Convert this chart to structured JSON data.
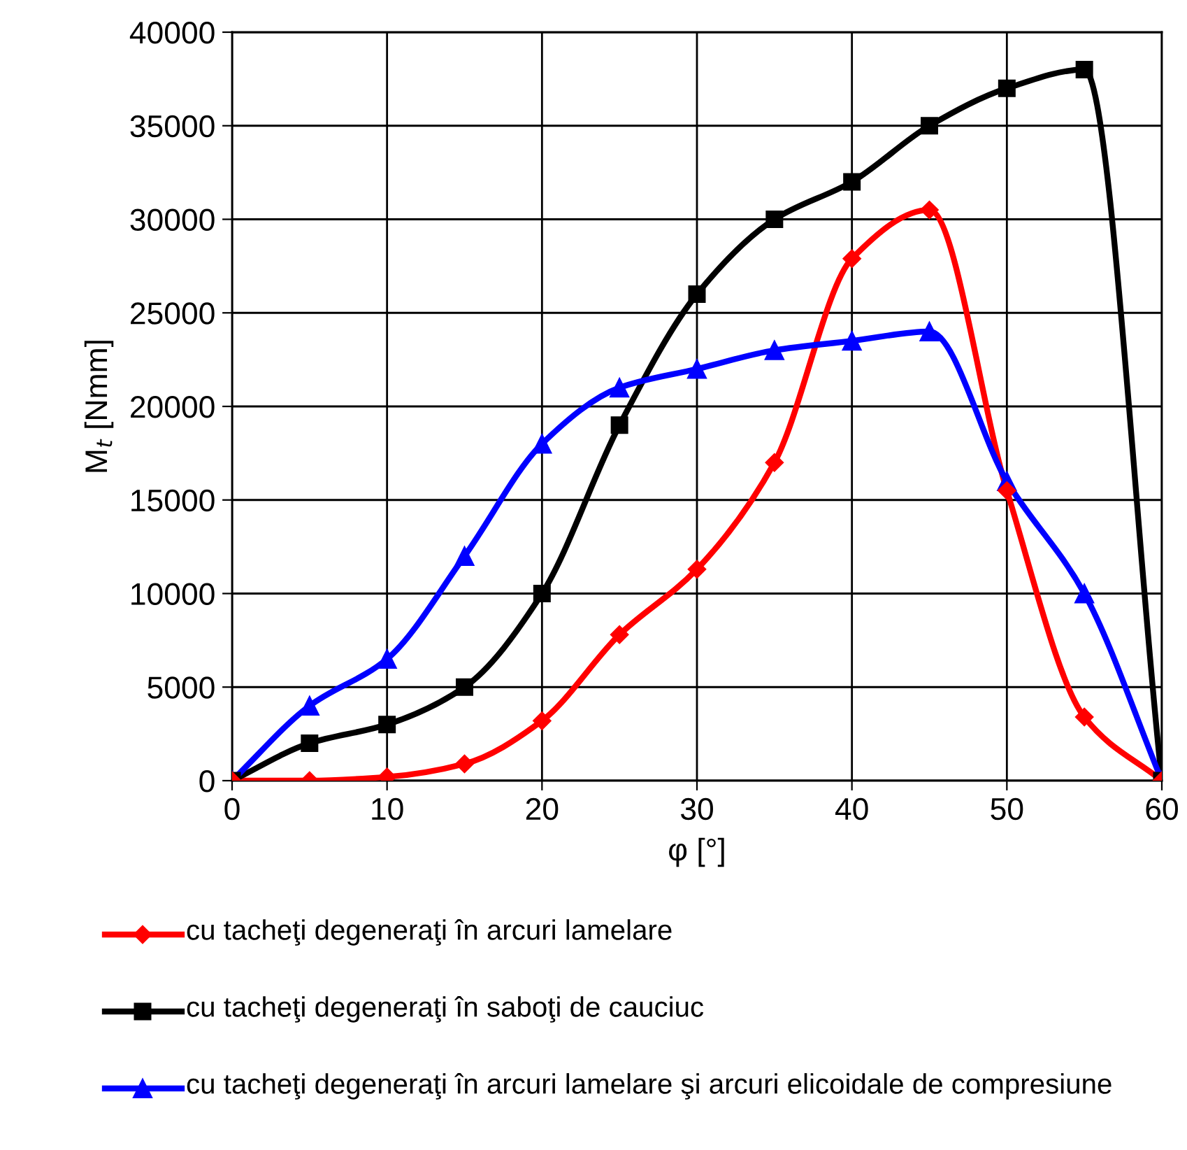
{
  "chart_data": {
    "type": "line",
    "xlabel": "φ [°]",
    "ylabel": "M$_{t}$ [Nmm]",
    "x": [
      0,
      5,
      10,
      15,
      20,
      25,
      30,
      35,
      40,
      45,
      50,
      55,
      60
    ],
    "series": [
      {
        "name": "cu tacheţi degeneraţi în arcuri lamelare",
        "color": "#ff0000",
        "marker": "diamond",
        "values": [
          0,
          0,
          200,
          900,
          3200,
          7800,
          11300,
          17000,
          27900,
          30500,
          15500,
          3400,
          0
        ]
      },
      {
        "name": "cu tacheţi degeneraţi în saboţi de cauciuc",
        "color": "#000000",
        "marker": "square",
        "values": [
          0,
          2000,
          3000,
          5000,
          10000,
          19000,
          26000,
          30000,
          32000,
          35000,
          37000,
          38000,
          0
        ]
      },
      {
        "name": "cu tacheţi degeneraţi în arcuri lamelare şi arcuri elicoidale de compresiune",
        "color": "#0000ff",
        "marker": "triangle",
        "values": [
          0,
          4000,
          6500,
          12000,
          18000,
          21000,
          22000,
          23000,
          23500,
          24000,
          16000,
          10000,
          0
        ]
      }
    ],
    "xlim": [
      0,
      60
    ],
    "xticks": [
      0,
      10,
      20,
      30,
      40,
      50,
      60
    ],
    "ylim": [
      0,
      40000
    ],
    "yticks": [
      0,
      5000,
      10000,
      15000,
      20000,
      25000,
      30000,
      35000,
      40000
    ],
    "grid": true,
    "legend": "bottom",
    "line_style": "solid"
  }
}
